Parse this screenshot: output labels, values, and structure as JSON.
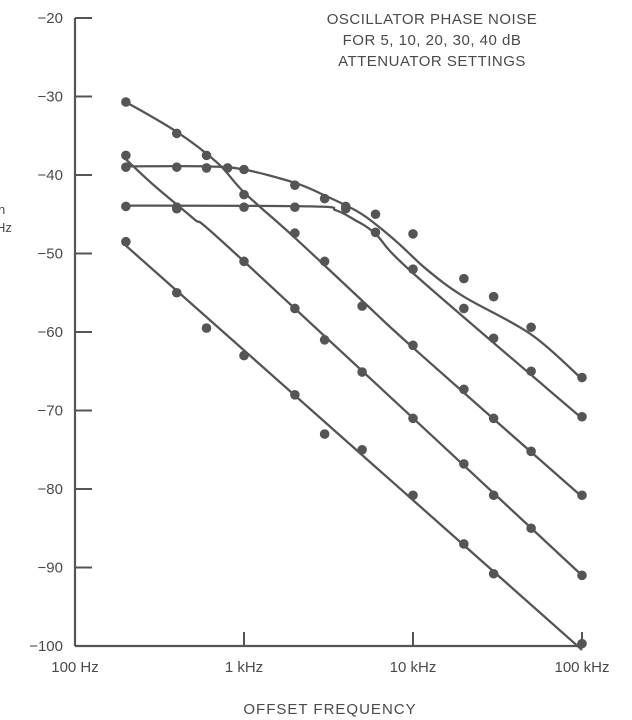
{
  "chart_data": {
    "type": "line",
    "title_lines": [
      "OSCILLATOR PHASE NOISE",
      "FOR 5, 10, 20, 30, 40 dB",
      "ATTENUATOR SETTINGS"
    ],
    "xlabel": "OFFSET FREQUENCY",
    "ylabel_fragments": [
      "n",
      "Hz"
    ],
    "x_scale": "log",
    "xlim": [
      100,
      100000
    ],
    "ylim": [
      -100,
      -20
    ],
    "x_ticks": [
      {
        "value": 100,
        "label": "100 Hz"
      },
      {
        "value": 1000,
        "label": "1 kHz"
      },
      {
        "value": 10000,
        "label": "10 kHz"
      },
      {
        "value": 100000,
        "label": "100 kHz"
      }
    ],
    "y_ticks": [
      {
        "value": -20,
        "label": "−20"
      },
      {
        "value": -30,
        "label": "−30"
      },
      {
        "value": -40,
        "label": "−40"
      },
      {
        "value": -50,
        "label": "−50"
      },
      {
        "value": -60,
        "label": "−60"
      },
      {
        "value": -70,
        "label": "−70"
      },
      {
        "value": -80,
        "label": "−80"
      },
      {
        "value": -90,
        "label": "−90"
      },
      {
        "value": -100,
        "label": "−100"
      }
    ],
    "grid": false,
    "line_color": "#555555",
    "series": [
      {
        "points": [
          [
            200,
            -30.7
          ],
          [
            400,
            -34.7
          ],
          [
            600,
            -37.5
          ],
          [
            1000,
            -42.5
          ],
          [
            2000,
            -47.4
          ],
          [
            3000,
            -51.0
          ],
          [
            5000,
            -56.7
          ],
          [
            10000,
            -61.7
          ],
          [
            20000,
            -67.3
          ],
          [
            30000,
            -71.0
          ],
          [
            50000,
            -75.2
          ],
          [
            100000,
            -80.8
          ]
        ],
        "curve": [
          [
            200,
            -30.7
          ],
          [
            400,
            -34.5
          ],
          [
            700,
            -38.5
          ],
          [
            1000,
            -42.2
          ],
          [
            2000,
            -48.0
          ],
          [
            5000,
            -56.0
          ],
          [
            10000,
            -62.0
          ],
          [
            100000,
            -81.0
          ]
        ]
      },
      {
        "points": [
          [
            200,
            -37.5
          ],
          [
            400,
            -44.3
          ],
          [
            1000,
            -51.0
          ],
          [
            2000,
            -57.0
          ],
          [
            3000,
            -61.0
          ],
          [
            5000,
            -65.1
          ],
          [
            10000,
            -71.0
          ],
          [
            20000,
            -76.8
          ],
          [
            30000,
            -80.8
          ],
          [
            50000,
            -85.0
          ],
          [
            100000,
            -91.0
          ]
        ],
        "curve": [
          [
            200,
            -38.0
          ],
          [
            300,
            -41.5
          ],
          [
            500,
            -45.5
          ],
          [
            1000,
            -51.0
          ],
          [
            100000,
            -91.0
          ]
        ]
      },
      {
        "points": [
          [
            200,
            -48.5
          ],
          [
            400,
            -55.0
          ],
          [
            600,
            -59.5
          ],
          [
            1000,
            -63.0
          ],
          [
            2000,
            -68.0
          ],
          [
            3000,
            -73.0
          ],
          [
            5000,
            -75.0
          ],
          [
            10000,
            -80.8
          ],
          [
            20000,
            -87.0
          ],
          [
            30000,
            -90.8
          ],
          [
            100000,
            -99.7
          ]
        ],
        "curve": [
          [
            200,
            -49.0
          ],
          [
            100000,
            -100.5
          ]
        ]
      },
      {
        "points": [
          [
            200,
            -39.0
          ],
          [
            400,
            -39.0
          ],
          [
            600,
            -39.1
          ],
          [
            800,
            -39.1
          ],
          [
            1000,
            -39.3
          ],
          [
            2000,
            -41.3
          ],
          [
            3000,
            -43.0
          ],
          [
            4000,
            -44.0
          ],
          [
            6000,
            -45.0
          ],
          [
            10000,
            -47.5
          ],
          [
            20000,
            -53.2
          ],
          [
            30000,
            -55.5
          ],
          [
            50000,
            -59.4
          ],
          [
            100000,
            -65.8
          ]
        ],
        "curve": [
          [
            200,
            -38.9
          ],
          [
            600,
            -38.9
          ],
          [
            1000,
            -39.3
          ],
          [
            2000,
            -41.0
          ],
          [
            3000,
            -42.6
          ],
          [
            5000,
            -45.0
          ],
          [
            8000,
            -48.5
          ],
          [
            12000,
            -52.0
          ],
          [
            20000,
            -55.5
          ],
          [
            50000,
            -60.3
          ],
          [
            100000,
            -66.0
          ]
        ]
      },
      {
        "points": [
          [
            200,
            -44.0
          ],
          [
            400,
            -44.1
          ],
          [
            1000,
            -44.1
          ],
          [
            2000,
            -44.1
          ],
          [
            4000,
            -44.3
          ],
          [
            6000,
            -47.3
          ],
          [
            10000,
            -52.0
          ],
          [
            20000,
            -57.0
          ],
          [
            30000,
            -60.8
          ],
          [
            50000,
            -65.0
          ],
          [
            100000,
            -70.8
          ]
        ],
        "curve": [
          [
            200,
            -43.9
          ],
          [
            2500,
            -44.0
          ],
          [
            3500,
            -44.5
          ],
          [
            4500,
            -45.7
          ],
          [
            6000,
            -47.5
          ],
          [
            10000,
            -52.5
          ],
          [
            100000,
            -71.0
          ]
        ]
      }
    ]
  }
}
